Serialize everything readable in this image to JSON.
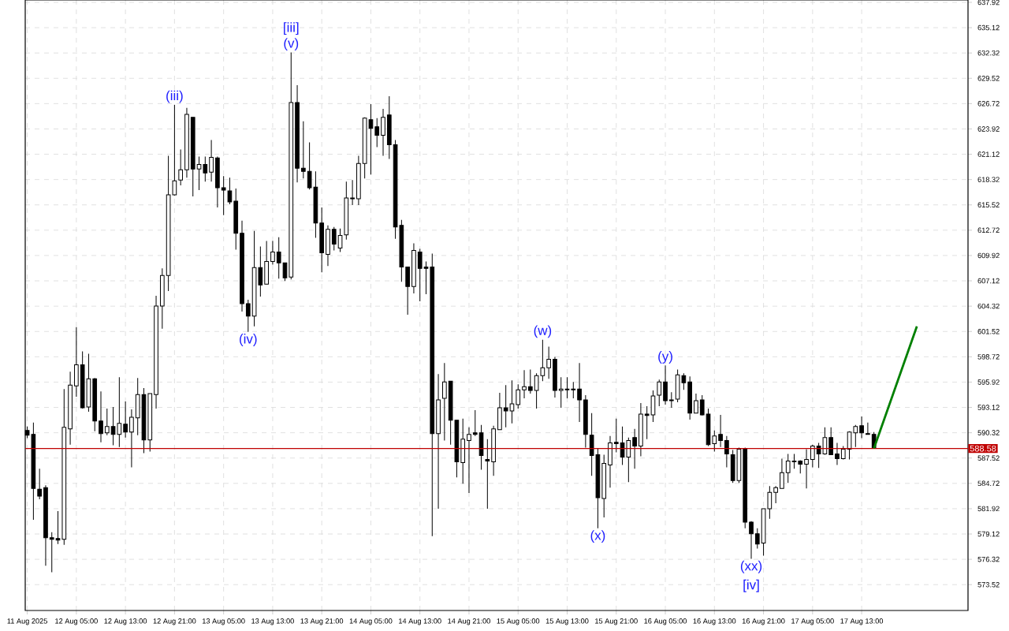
{
  "chart_data": {
    "type": "candlestick",
    "x": [
      "2025-08-11T21:00",
      "2025-08-11T22:00",
      "2025-08-11T23:00",
      "2025-08-12T00:00",
      "2025-08-12T01:00",
      "2025-08-12T02:00",
      "2025-08-12T03:00",
      "2025-08-12T04:00",
      "2025-08-12T05:00",
      "2025-08-12T06:00",
      "2025-08-12T07:00",
      "2025-08-12T08:00",
      "2025-08-12T09:00",
      "2025-08-12T10:00",
      "2025-08-12T11:00",
      "2025-08-12T12:00",
      "2025-08-12T13:00",
      "2025-08-12T14:00",
      "2025-08-12T15:00",
      "2025-08-12T16:00",
      "2025-08-12T17:00",
      "2025-08-12T18:00",
      "2025-08-12T19:00",
      "2025-08-12T20:00",
      "2025-08-12T21:00",
      "2025-08-12T22:00",
      "2025-08-12T23:00",
      "2025-08-13T00:00",
      "2025-08-13T01:00",
      "2025-08-13T02:00",
      "2025-08-13T03:00",
      "2025-08-13T04:00",
      "2025-08-13T05:00",
      "2025-08-13T06:00",
      "2025-08-13T07:00",
      "2025-08-13T08:00",
      "2025-08-13T09:00",
      "2025-08-13T10:00",
      "2025-08-13T11:00",
      "2025-08-13T12:00",
      "2025-08-13T13:00",
      "2025-08-13T14:00",
      "2025-08-13T15:00",
      "2025-08-13T16:00",
      "2025-08-13T17:00",
      "2025-08-13T18:00",
      "2025-08-13T19:00",
      "2025-08-13T20:00",
      "2025-08-13T21:00",
      "2025-08-13T22:00",
      "2025-08-13T23:00",
      "2025-08-14T00:00",
      "2025-08-14T01:00",
      "2025-08-14T02:00",
      "2025-08-14T03:00",
      "2025-08-14T04:00",
      "2025-08-14T05:00",
      "2025-08-14T06:00",
      "2025-08-14T07:00",
      "2025-08-14T08:00",
      "2025-08-14T09:00",
      "2025-08-14T10:00",
      "2025-08-14T11:00",
      "2025-08-14T12:00",
      "2025-08-14T13:00",
      "2025-08-14T14:00",
      "2025-08-14T15:00",
      "2025-08-14T16:00",
      "2025-08-14T17:00",
      "2025-08-14T18:00",
      "2025-08-14T19:00",
      "2025-08-14T20:00",
      "2025-08-14T21:00",
      "2025-08-14T22:00",
      "2025-08-14T23:00",
      "2025-08-15T00:00",
      "2025-08-15T01:00",
      "2025-08-15T02:00",
      "2025-08-15T03:00",
      "2025-08-15T04:00",
      "2025-08-15T05:00",
      "2025-08-15T06:00",
      "2025-08-15T07:00",
      "2025-08-15T08:00",
      "2025-08-15T09:00",
      "2025-08-15T10:00",
      "2025-08-15T11:00",
      "2025-08-15T12:00",
      "2025-08-15T13:00",
      "2025-08-15T14:00",
      "2025-08-15T15:00",
      "2025-08-15T16:00",
      "2025-08-15T17:00",
      "2025-08-15T18:00",
      "2025-08-15T19:00",
      "2025-08-15T20:00",
      "2025-08-15T21:00",
      "2025-08-15T22:00",
      "2025-08-15T23:00",
      "2025-08-16T00:00",
      "2025-08-16T01:00",
      "2025-08-16T02:00",
      "2025-08-16T03:00",
      "2025-08-16T04:00",
      "2025-08-16T05:00",
      "2025-08-16T06:00",
      "2025-08-16T07:00",
      "2025-08-16T08:00",
      "2025-08-16T09:00",
      "2025-08-16T10:00",
      "2025-08-16T11:00",
      "2025-08-16T12:00",
      "2025-08-16T13:00",
      "2025-08-16T14:00",
      "2025-08-16T15:00",
      "2025-08-16T16:00",
      "2025-08-16T17:00",
      "2025-08-16T18:00",
      "2025-08-16T19:00",
      "2025-08-16T20:00",
      "2025-08-16T21:00",
      "2025-08-16T22:00",
      "2025-08-16T23:00",
      "2025-08-17T00:00",
      "2025-08-17T01:00",
      "2025-08-17T02:00",
      "2025-08-17T03:00",
      "2025-08-17T04:00",
      "2025-08-17T05:00",
      "2025-08-17T06:00",
      "2025-08-17T07:00",
      "2025-08-17T08:00",
      "2025-08-17T09:00",
      "2025-08-17T10:00",
      "2025-08-17T11:00",
      "2025-08-17T12:00",
      "2025-08-17T13:00",
      "2025-08-17T14:00",
      "2025-08-17T15:00"
    ],
    "ohlc": [
      [
        590.57,
        591.01,
        589.71,
        590.05
      ],
      [
        590.14,
        591.44,
        580.7,
        584.17
      ],
      [
        584.08,
        586.33,
        582.96,
        583.3
      ],
      [
        584.25,
        584.51,
        575.6,
        578.71
      ],
      [
        578.71,
        579.32,
        574.9,
        578.54
      ],
      [
        578.63,
        581.66,
        578.02,
        578.45
      ],
      [
        578.54,
        595.16,
        577.93,
        590.92
      ],
      [
        590.75,
        597.06,
        589.01,
        595.59
      ],
      [
        595.51,
        602.0,
        594.29,
        597.84
      ],
      [
        597.84,
        599.31,
        593.0,
        593.08
      ],
      [
        593.17,
        599.06,
        592.65,
        596.29
      ],
      [
        596.29,
        596.37,
        590.49,
        591.61
      ],
      [
        591.61,
        594.9,
        589.27,
        590.23
      ],
      [
        590.31,
        593.0,
        590.05,
        591.01
      ],
      [
        591.01,
        593.17,
        588.93,
        590.14
      ],
      [
        590.14,
        596.46,
        588.75,
        591.35
      ],
      [
        591.26,
        593.78,
        589.79,
        590.4
      ],
      [
        590.4,
        592.91,
        586.5,
        592.04
      ],
      [
        591.96,
        596.37,
        590.05,
        594.55
      ],
      [
        594.55,
        595.25,
        588.06,
        589.53
      ],
      [
        589.53,
        594.64,
        588.24,
        594.64
      ],
      [
        594.55,
        605.46,
        593.0,
        604.34
      ],
      [
        604.34,
        608.49,
        601.83,
        607.71
      ],
      [
        607.71,
        620.95,
        605.98,
        616.63
      ],
      [
        616.63,
        626.58,
        616.54,
        618.18
      ],
      [
        618.27,
        621.65,
        617.67,
        619.4
      ],
      [
        619.4,
        626.24,
        618.53,
        625.54
      ],
      [
        625.2,
        625.2,
        616.45,
        619.48
      ],
      [
        619.48,
        620.87,
        617.15,
        620.0
      ],
      [
        620.0,
        620.87,
        618.1,
        619.05
      ],
      [
        619.14,
        622.69,
        618.1,
        620.78
      ],
      [
        620.7,
        620.87,
        615.24,
        617.41
      ],
      [
        617.41,
        618.7,
        614.38,
        617.15
      ],
      [
        617.06,
        618.53,
        615.59,
        615.85
      ],
      [
        615.93,
        617.32,
        610.57,
        612.39
      ],
      [
        612.39,
        613.77,
        603.73,
        604.6
      ],
      [
        604.6,
        605.03,
        601.48,
        603.21
      ],
      [
        603.21,
        612.65,
        602.08,
        608.58
      ],
      [
        608.58,
        610.91,
        605.37,
        606.67
      ],
      [
        606.76,
        611.52,
        606.76,
        609.27
      ],
      [
        609.27,
        611.52,
        608.92,
        610.31
      ],
      [
        610.31,
        611.95,
        607.36,
        609.1
      ],
      [
        609.1,
        609.1,
        607.11,
        607.45
      ],
      [
        607.54,
        632.38,
        607.28,
        626.84
      ],
      [
        626.84,
        628.75,
        618.01,
        619.57
      ],
      [
        619.57,
        624.76,
        618.44,
        619.22
      ],
      [
        619.22,
        622.43,
        617.23,
        617.41
      ],
      [
        617.49,
        619.22,
        611.87,
        613.51
      ],
      [
        613.51,
        615.24,
        608.06,
        610.22
      ],
      [
        610.05,
        613.25,
        608.75,
        612.82
      ],
      [
        612.82,
        613.08,
        610.48,
        611.17
      ],
      [
        610.74,
        612.9,
        610.31,
        612.13
      ],
      [
        612.21,
        618.1,
        611.69,
        616.28
      ],
      [
        616.28,
        618.27,
        615.5,
        616.19
      ],
      [
        616.19,
        620.95,
        615.5,
        620.09
      ],
      [
        620.09,
        625.2,
        618.44,
        625.11
      ],
      [
        624.94,
        626.67,
        618.88,
        623.98
      ],
      [
        624.16,
        625.11,
        621.91,
        623.21
      ],
      [
        623.21,
        626.15,
        620.95,
        625.2
      ],
      [
        625.46,
        627.53,
        620.61,
        622.17
      ],
      [
        622.17,
        622.69,
        611.78,
        613.08
      ],
      [
        613.25,
        613.86,
        607.02,
        608.66
      ],
      [
        608.66,
        608.66,
        603.38,
        606.5
      ],
      [
        606.5,
        611.26,
        605.72,
        610.48
      ],
      [
        610.31,
        610.65,
        604.85,
        608.49
      ],
      [
        608.66,
        609.27,
        605.63,
        608.49
      ],
      [
        608.66,
        610.13,
        578.89,
        590.23
      ],
      [
        590.23,
        596.8,
        581.92,
        593.95
      ],
      [
        594.12,
        598.02,
        589.45,
        595.94
      ],
      [
        596.03,
        596.03,
        589.01,
        591.7
      ],
      [
        591.7,
        591.7,
        585.38,
        587.11
      ],
      [
        587.02,
        591.87,
        584.69,
        589.62
      ],
      [
        589.45,
        590.92,
        583.65,
        590.14
      ],
      [
        590.31,
        592.82,
        589.97,
        590.14
      ],
      [
        590.31,
        591.18,
        586.24,
        587.8
      ],
      [
        587.37,
        589.62,
        581.92,
        587.2
      ],
      [
        587.11,
        591.09,
        585.55,
        590.75
      ],
      [
        590.66,
        594.73,
        590.66,
        593.08
      ],
      [
        593.08,
        595.59,
        590.92,
        592.74
      ],
      [
        592.74,
        596.11,
        591.35,
        593.52
      ],
      [
        593.43,
        595.68,
        593.0,
        595.07
      ],
      [
        595.07,
        597.24,
        594.12,
        595.42
      ],
      [
        595.42,
        597.32,
        594.64,
        594.99
      ],
      [
        594.99,
        596.89,
        593.0,
        596.63
      ],
      [
        596.63,
        600.61,
        596.03,
        597.5
      ],
      [
        597.5,
        599.83,
        596.29,
        598.45
      ],
      [
        598.45,
        598.71,
        594.21,
        594.99
      ],
      [
        594.99,
        596.46,
        593.08,
        595.16
      ],
      [
        595.16,
        596.46,
        594.12,
        595.07
      ],
      [
        595.16,
        595.94,
        594.12,
        595.07
      ],
      [
        595.16,
        598.02,
        591.52,
        593.95
      ],
      [
        593.95,
        594.47,
        588.67,
        590.14
      ],
      [
        590.05,
        592.48,
        585.55,
        587.8
      ],
      [
        587.89,
        588.58,
        579.75,
        583.13
      ],
      [
        583.04,
        587.89,
        580.96,
        586.94
      ],
      [
        586.76,
        589.97,
        584.25,
        589.19
      ],
      [
        589.27,
        591.87,
        588.15,
        589.1
      ],
      [
        589.19,
        591.01,
        586.76,
        587.63
      ],
      [
        587.63,
        589.79,
        584.86,
        589.45
      ],
      [
        589.79,
        590.75,
        586.33,
        588.84
      ],
      [
        588.84,
        593.6,
        587.72,
        592.39
      ],
      [
        592.39,
        593.26,
        589.62,
        592.22
      ],
      [
        592.3,
        594.99,
        591.52,
        594.38
      ],
      [
        594.47,
        596.2,
        593.26,
        595.94
      ],
      [
        595.94,
        597.76,
        593.43,
        593.86
      ],
      [
        593.95,
        594.81,
        593.08,
        593.86
      ],
      [
        594.03,
        597.32,
        593.69,
        596.72
      ],
      [
        596.63,
        596.89,
        595.07,
        595.85
      ],
      [
        595.94,
        596.54,
        591.78,
        592.48
      ],
      [
        592.48,
        594.64,
        592.48,
        593.86
      ],
      [
        593.95,
        594.47,
        592.22,
        592.3
      ],
      [
        592.39,
        593.0,
        588.84,
        589.01
      ],
      [
        589.1,
        590.57,
        588.24,
        589.97
      ],
      [
        590.14,
        592.3,
        588.75,
        589.45
      ],
      [
        589.45,
        589.97,
        586.5,
        587.98
      ],
      [
        587.89,
        588.41,
        584.77,
        585.03
      ],
      [
        585.03,
        588.67,
        584.77,
        588.49
      ],
      [
        588.58,
        588.67,
        579.75,
        580.44
      ],
      [
        580.44,
        580.53,
        576.38,
        579.15
      ],
      [
        579.15,
        579.75,
        577.5,
        578.02
      ],
      [
        578.11,
        581.92,
        576.72,
        581.92
      ],
      [
        581.92,
        584.43,
        580.79,
        583.73
      ],
      [
        583.73,
        584.43,
        582.52,
        584.25
      ],
      [
        584.17,
        587.46,
        584.17,
        585.9
      ],
      [
        585.9,
        587.98,
        584.77,
        587.2
      ],
      [
        587.2,
        587.98,
        586.33,
        587.11
      ],
      [
        587.2,
        587.28,
        585.81,
        586.85
      ],
      [
        586.85,
        588.49,
        584.17,
        587.37
      ],
      [
        587.37,
        589.01,
        586.5,
        588.84
      ],
      [
        588.84,
        589.19,
        586.42,
        587.98
      ],
      [
        587.98,
        590.92,
        587.89,
        589.79
      ],
      [
        589.79,
        590.92,
        587.89,
        587.89
      ],
      [
        587.98,
        589.19,
        586.76,
        587.46
      ],
      [
        587.46,
        588.84,
        587.37,
        588.49
      ],
      [
        588.49,
        590.49,
        587.37,
        590.4
      ],
      [
        590.31,
        591.18,
        588.75,
        591.01
      ],
      [
        591.09,
        592.13,
        589.71,
        590.31
      ],
      [
        590.23,
        591.44,
        590.14,
        590.14
      ],
      [
        590.14,
        590.4,
        588.58,
        588.58
      ]
    ],
    "series": [
      {
        "type": "line",
        "color": "#008000",
        "x": [
          "2025-08-17T15:00",
          "2025-08-17T22:00"
        ],
        "values": [
          588.58,
          602.08
        ]
      }
    ],
    "xlim": [
      "2025-08-11T20:40",
      "2025-08-18T06:20"
    ],
    "ylim": [
      570.66,
      638.18
    ],
    "xticks": [
      {
        "value": "2025-08-11T21:00",
        "label": "11 Aug 2025"
      },
      {
        "value": "2025-08-12T05:00",
        "label": "12 Aug 05:00"
      },
      {
        "value": "2025-08-12T13:00",
        "label": "12 Aug 13:00"
      },
      {
        "value": "2025-08-12T21:00",
        "label": "12 Aug 21:00"
      },
      {
        "value": "2025-08-13T05:00",
        "label": "13 Aug 05:00"
      },
      {
        "value": "2025-08-13T13:00",
        "label": "13 Aug 13:00"
      },
      {
        "value": "2025-08-13T21:00",
        "label": "13 Aug 21:00"
      },
      {
        "value": "2025-08-14T05:00",
        "label": "14 Aug 05:00"
      },
      {
        "value": "2025-08-14T13:00",
        "label": "14 Aug 13:00"
      },
      {
        "value": "2025-08-14T21:00",
        "label": "14 Aug 21:00"
      },
      {
        "value": "2025-08-15T05:00",
        "label": "15 Aug 05:00"
      },
      {
        "value": "2025-08-15T13:00",
        "label": "15 Aug 13:00"
      },
      {
        "value": "2025-08-15T21:00",
        "label": "15 Aug 21:00"
      },
      {
        "value": "2025-08-16T05:00",
        "label": "16 Aug 05:00"
      },
      {
        "value": "2025-08-16T13:00",
        "label": "16 Aug 13:00"
      },
      {
        "value": "2025-08-16T21:00",
        "label": "16 Aug 21:00"
      },
      {
        "value": "2025-08-17T05:00",
        "label": "17 Aug 05:00"
      },
      {
        "value": "2025-08-17T13:00",
        "label": "17 Aug 13:00"
      }
    ],
    "yticks": [
      573.52,
      576.32,
      579.12,
      581.92,
      584.72,
      587.52,
      590.32,
      593.12,
      595.92,
      598.72,
      601.52,
      604.32,
      607.12,
      609.92,
      612.72,
      615.52,
      618.32,
      621.12,
      623.92,
      626.72,
      629.52,
      632.32,
      635.12,
      637.92
    ],
    "grid": true,
    "ref_lines": [
      {
        "axis": "y",
        "value": 588.58,
        "label": "588.58",
        "color": "#c00000"
      }
    ],
    "annotations": [
      {
        "text": "(iii)",
        "x": "2025-08-12T21:00",
        "y": 626.58
      },
      {
        "text": "(v)",
        "x": "2025-08-13T16:00",
        "y": 632.38
      },
      {
        "text": "[iii]",
        "x": "2025-08-13T16:00",
        "y": 632.38
      },
      {
        "text": "(iv)",
        "x": "2025-08-13T09:00",
        "y": 601.48
      },
      {
        "text": "(w)",
        "x": "2025-08-15T09:00",
        "y": 600.61
      },
      {
        "text": "(x)",
        "x": "2025-08-15T18:00",
        "y": 579.75
      },
      {
        "text": "(y)",
        "x": "2025-08-16T05:00",
        "y": 597.76
      },
      {
        "text": "(xx)",
        "x": "2025-08-16T19:00",
        "y": 576.38
      },
      {
        "text": "[iv]",
        "x": "2025-08-16T19:00",
        "y": 576.38
      }
    ]
  }
}
